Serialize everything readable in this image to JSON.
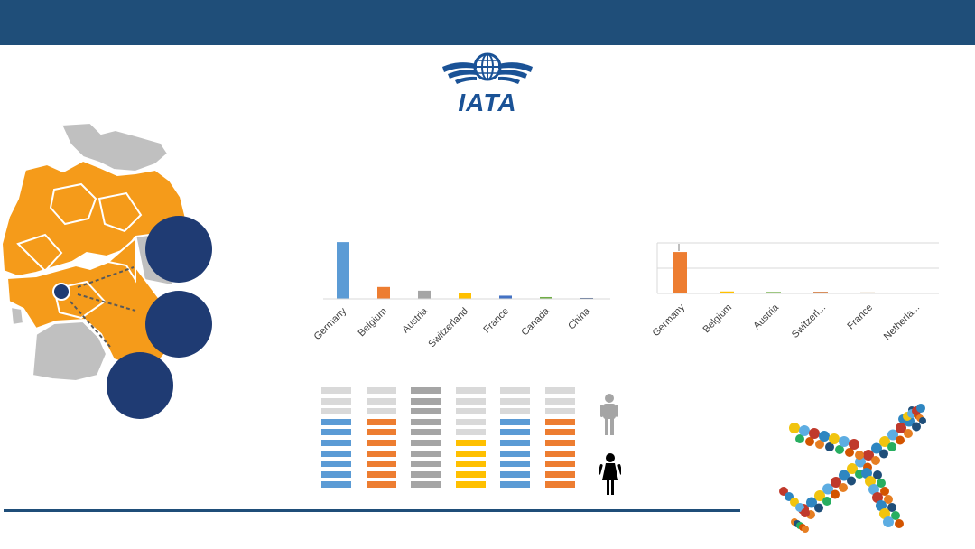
{
  "header": {
    "bar_color": "#1f4e79"
  },
  "logo": {
    "text": "IATA",
    "color": "#1a5296",
    "icon": "globe-wings-icon"
  },
  "map": {
    "highlight_color": "#f59b1a",
    "base_color": "#c0c0c0",
    "callout_color": "#1f3b73",
    "marker": "pin-icon"
  },
  "chart_data": [
    {
      "type": "bar",
      "categories": [
        "Germany",
        "Belgium",
        "Austria",
        "Switzerland",
        "France",
        "Canada",
        "China"
      ],
      "values": [
        62,
        13,
        9,
        6,
        3.5,
        2,
        1
      ],
      "colors": [
        "#5b9bd5",
        "#ed7d31",
        "#a5a5a5",
        "#ffc000",
        "#4472c4",
        "#70ad47",
        "#264478"
      ],
      "ylim": [
        0,
        70
      ],
      "grid": false
    },
    {
      "type": "bar",
      "categories": [
        "Germany",
        "Belgium",
        "Austria",
        "Switzerl...",
        "France",
        "Netherla..."
      ],
      "values": [
        82,
        4,
        3,
        3,
        2,
        0
      ],
      "colors": [
        "#ed7d31",
        "#ffc000",
        "#70ad47",
        "#c55a11",
        "#a9742b",
        "#ed7d31"
      ],
      "ylim": [
        0,
        100
      ],
      "grid": true
    }
  ],
  "gender_stacks": {
    "rows": 10,
    "empty_color": "#d9d9d9",
    "columns": [
      {
        "color": "#5b9bd5",
        "filled": 7,
        "empty_alt": "#d9d9d9"
      },
      {
        "color": "#ed7d31",
        "filled": 7,
        "empty_alt": "#d9d9d9"
      },
      {
        "color": "#a5a5a5",
        "filled": 10,
        "empty_alt": "#d9d9d9"
      },
      {
        "color": "#ffc000",
        "filled": 5,
        "empty_alt": "#d9d9d9"
      },
      {
        "color": "#5b9bd5",
        "filled": 7,
        "empty_alt": "#d9d9d9"
      },
      {
        "color": "#ed7d31",
        "filled": 7,
        "empty_alt": "#d9d9d9"
      }
    ],
    "male_icon": "male-person-icon",
    "female_icon": "female-person-icon"
  },
  "decor": {
    "plane_icon": "airplane-icon-mosaic"
  }
}
